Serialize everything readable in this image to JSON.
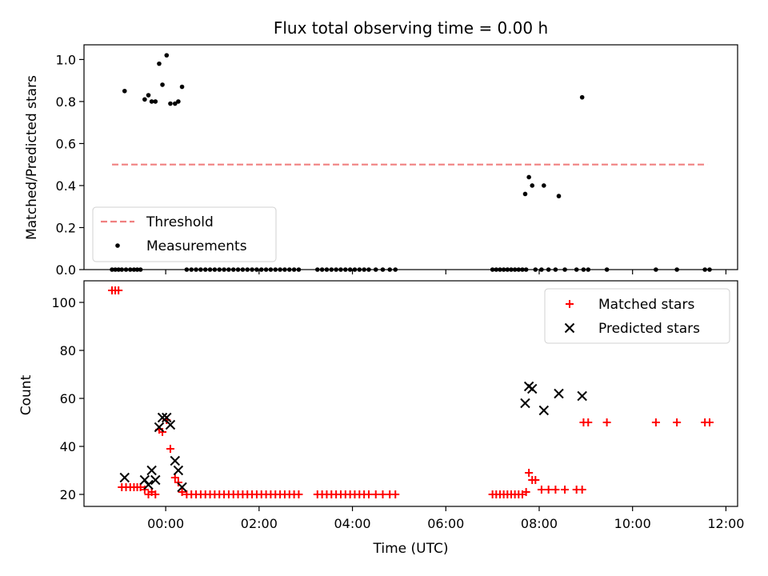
{
  "chart_data": [
    {
      "type": "scatter",
      "title": "Flux total observing time = 0.00 h",
      "xlabel": "",
      "ylabel": "Matched/Predicted stars",
      "xlim": [
        -1.75,
        12.25
      ],
      "ylim": [
        0.0,
        1.07
      ],
      "xticks": [
        0,
        2,
        4,
        6,
        8,
        10,
        12
      ],
      "yticks": [
        0.0,
        0.2,
        0.4,
        0.6,
        0.8,
        1.0
      ],
      "yticklabels": [
        "0.0",
        "0.2",
        "0.4",
        "0.6",
        "0.8",
        "1.0"
      ],
      "legend_position": "lower-left",
      "series": [
        {
          "name": "Threshold",
          "kind": "line",
          "style": "dashed",
          "color": "#f08080",
          "x": [
            -1.15,
            11.6
          ],
          "y": [
            0.5,
            0.5
          ]
        },
        {
          "name": "Measurements",
          "kind": "scatter",
          "marker": "dot",
          "color": "#000000",
          "x": [
            -0.88,
            -0.45,
            -0.37,
            -0.3,
            -0.22,
            -0.14,
            -0.07,
            0.02,
            0.1,
            0.2,
            0.27,
            0.35,
            7.7,
            7.78,
            7.85,
            8.1,
            8.42,
            8.92,
            -1.15,
            -1.08,
            -1.01,
            -0.94,
            -0.85,
            -0.76,
            -0.68,
            -0.61,
            -0.54,
            0.45,
            0.55,
            0.65,
            0.75,
            0.85,
            0.95,
            1.05,
            1.15,
            1.25,
            1.35,
            1.45,
            1.55,
            1.65,
            1.75,
            1.85,
            1.95,
            2.05,
            2.15,
            2.25,
            2.35,
            2.45,
            2.55,
            2.65,
            2.75,
            2.85,
            3.25,
            3.35,
            3.45,
            3.55,
            3.65,
            3.75,
            3.85,
            3.95,
            4.05,
            4.15,
            4.25,
            4.35,
            4.5,
            4.65,
            4.8,
            4.92,
            7.0,
            7.08,
            7.16,
            7.24,
            7.32,
            7.4,
            7.48,
            7.56,
            7.64,
            7.72,
            7.92,
            8.05,
            8.2,
            8.35,
            8.55,
            8.8,
            8.95,
            9.05,
            9.45,
            10.5,
            10.95,
            11.55,
            11.65
          ],
          "y": [
            0.85,
            0.81,
            0.83,
            0.8,
            0.8,
            0.98,
            0.88,
            1.02,
            0.79,
            0.79,
            0.8,
            0.87,
            0.36,
            0.44,
            0.4,
            0.4,
            0.35,
            0.82,
            0,
            0,
            0,
            0,
            0,
            0,
            0,
            0,
            0,
            0,
            0,
            0,
            0,
            0,
            0,
            0,
            0,
            0,
            0,
            0,
            0,
            0,
            0,
            0,
            0,
            0,
            0,
            0,
            0,
            0,
            0,
            0,
            0,
            0,
            0,
            0,
            0,
            0,
            0,
            0,
            0,
            0,
            0,
            0,
            0,
            0,
            0,
            0,
            0,
            0,
            0,
            0,
            0,
            0,
            0,
            0,
            0,
            0,
            0,
            0,
            0,
            0,
            0,
            0,
            0,
            0,
            0,
            0,
            0,
            0,
            0,
            0,
            0
          ]
        }
      ]
    },
    {
      "type": "scatter",
      "title": "",
      "xlabel": "Time (UTC)",
      "ylabel": "Count",
      "xlim": [
        -1.75,
        12.25
      ],
      "ylim": [
        15,
        109
      ],
      "xticks": [
        0,
        2,
        4,
        6,
        8,
        10,
        12
      ],
      "xticklabels": [
        "00:00",
        "02:00",
        "04:00",
        "06:00",
        "08:00",
        "10:00",
        "12:00"
      ],
      "yticks": [
        20,
        40,
        60,
        80,
        100
      ],
      "yticklabels": [
        "20",
        "40",
        "60",
        "80",
        "100"
      ],
      "legend_position": "upper-right",
      "series": [
        {
          "name": "Matched stars",
          "marker": "plus",
          "color": "#ff0000",
          "x": [
            -1.15,
            -1.08,
            -1.01,
            -0.94,
            -0.85,
            -0.76,
            -0.68,
            -0.61,
            -0.54,
            -0.45,
            -0.37,
            -0.3,
            -0.22,
            -0.14,
            -0.07,
            0.02,
            0.1,
            0.2,
            0.27,
            0.35,
            0.45,
            0.55,
            0.65,
            0.75,
            0.85,
            0.95,
            1.05,
            1.15,
            1.25,
            1.35,
            1.45,
            1.55,
            1.65,
            1.75,
            1.85,
            1.95,
            2.05,
            2.15,
            2.25,
            2.35,
            2.45,
            2.55,
            2.65,
            2.75,
            2.85,
            3.25,
            3.35,
            3.45,
            3.55,
            3.65,
            3.75,
            3.85,
            3.95,
            4.05,
            4.15,
            4.25,
            4.35,
            4.5,
            4.65,
            4.8,
            4.92,
            7.0,
            7.08,
            7.16,
            7.24,
            7.32,
            7.4,
            7.48,
            7.56,
            7.64,
            7.72,
            7.78,
            7.85,
            7.92,
            8.05,
            8.2,
            8.35,
            8.55,
            8.8,
            8.92,
            8.95,
            9.05,
            9.45,
            10.5,
            10.95,
            11.55,
            11.65
          ],
          "y": [
            105,
            105,
            105,
            23,
            23,
            23,
            23,
            23,
            23,
            22,
            20,
            21,
            20,
            47,
            46,
            51,
            39,
            27,
            25,
            21,
            20,
            20,
            20,
            20,
            20,
            20,
            20,
            20,
            20,
            20,
            20,
            20,
            20,
            20,
            20,
            20,
            20,
            20,
            20,
            20,
            20,
            20,
            20,
            20,
            20,
            20,
            20,
            20,
            20,
            20,
            20,
            20,
            20,
            20,
            20,
            20,
            20,
            20,
            20,
            20,
            20,
            20,
            20,
            20,
            20,
            20,
            20,
            20,
            20,
            20,
            21,
            29,
            26,
            26,
            22,
            22,
            22,
            22,
            22,
            22,
            50,
            50,
            50,
            50,
            50,
            50,
            50
          ]
        },
        {
          "name": "Predicted stars",
          "marker": "x",
          "color": "#000000",
          "x": [
            -0.88,
            -0.45,
            -0.37,
            -0.3,
            -0.22,
            -0.14,
            -0.07,
            0.02,
            0.1,
            0.2,
            0.27,
            0.35,
            7.7,
            7.78,
            7.85,
            8.1,
            8.42,
            8.92
          ],
          "y": [
            27,
            26,
            24,
            30,
            26,
            48,
            52,
            52,
            49,
            34,
            30,
            23,
            58,
            65,
            64,
            55,
            62,
            61
          ]
        }
      ]
    }
  ]
}
